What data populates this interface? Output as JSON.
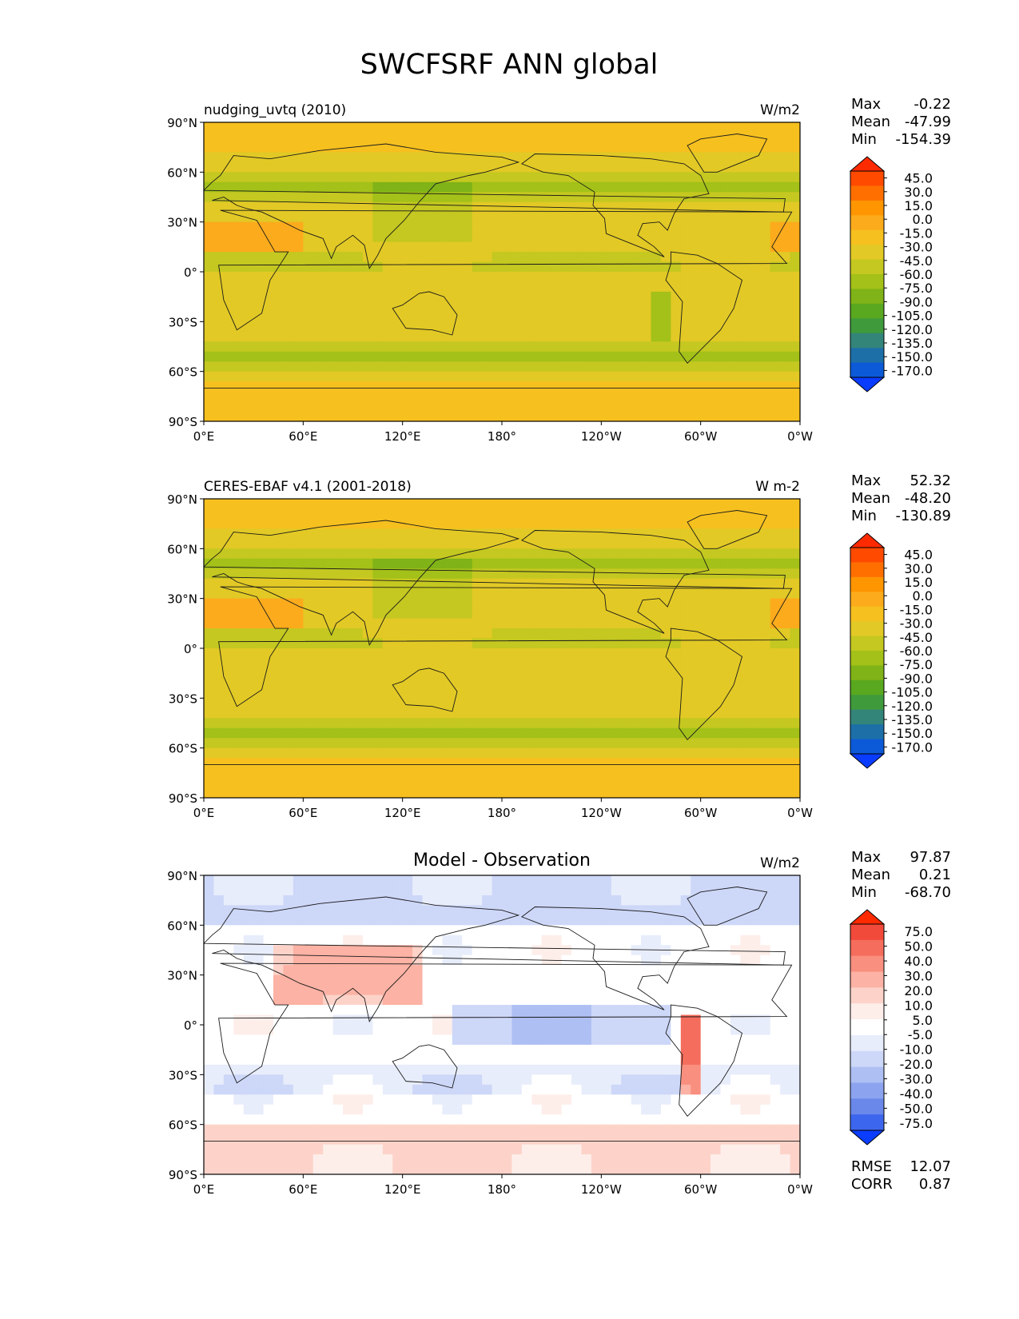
{
  "figure": {
    "title": "SWCFSRF ANN global"
  },
  "axes": {
    "lat_labels": [
      "90°N",
      "60°N",
      "30°N",
      "0°",
      "30°S",
      "60°S",
      "90°S"
    ],
    "lon_labels": [
      "0°E",
      "60°E",
      "120°E",
      "180°",
      "120°W",
      "60°W",
      "0°W"
    ]
  },
  "panels": [
    {
      "left_title": "nudging_uvtq (2010)",
      "center_title": "",
      "units": "W/m2",
      "stats": [
        {
          "label": "Max",
          "value": "-0.22"
        },
        {
          "label": "Mean",
          "value": "-47.99"
        },
        {
          "label": "Min",
          "value": "-154.39"
        }
      ],
      "colorbar": {
        "labels": [
          "45.0",
          "30.0",
          "15.0",
          "0.0",
          "-15.0",
          "-30.0",
          "-45.0",
          "-60.0",
          "-75.0",
          "-90.0",
          "-105.0",
          "-120.0",
          "-135.0",
          "-150.0",
          "-170.0"
        ],
        "colors": [
          "#ff2a00",
          "#ff4a00",
          "#ff6f00",
          "#ff9500",
          "#fcab1c",
          "#f6c01f",
          "#e2c925",
          "#c4c820",
          "#a3c118",
          "#7fb317",
          "#59a820",
          "#3f9a3c",
          "#33857a",
          "#1d6fa8",
          "#0c5ad8",
          "#0a3cff"
        ]
      },
      "field": "model"
    },
    {
      "left_title": "CERES-EBAF v4.1 (2001-2018)",
      "center_title": "",
      "units": "W m-2",
      "stats": [
        {
          "label": "Max",
          "value": "52.32"
        },
        {
          "label": "Mean",
          "value": "-48.20"
        },
        {
          "label": "Min",
          "value": "-130.89"
        }
      ],
      "colorbar": {
        "labels": [
          "45.0",
          "30.0",
          "15.0",
          "0.0",
          "-15.0",
          "-30.0",
          "-45.0",
          "-60.0",
          "-75.0",
          "-90.0",
          "-105.0",
          "-120.0",
          "-135.0",
          "-150.0",
          "-170.0"
        ],
        "colors": [
          "#ff2a00",
          "#ff4a00",
          "#ff6f00",
          "#ff9500",
          "#fcab1c",
          "#f6c01f",
          "#e2c925",
          "#c4c820",
          "#a3c118",
          "#7fb317",
          "#59a820",
          "#3f9a3c",
          "#33857a",
          "#1d6fa8",
          "#0c5ad8",
          "#0a3cff"
        ]
      },
      "field": "obs"
    },
    {
      "left_title": "",
      "center_title": "Model - Observation",
      "units": "W/m2",
      "stats": [
        {
          "label": "Max",
          "value": "97.87"
        },
        {
          "label": "Mean",
          "value": "0.21"
        },
        {
          "label": "Min",
          "value": "-68.70"
        }
      ],
      "colorbar": {
        "labels": [
          "75.0",
          "50.0",
          "40.0",
          "30.0",
          "20.0",
          "10.0",
          "5.0",
          "-5.0",
          "-10.0",
          "-20.0",
          "-30.0",
          "-40.0",
          "-50.0",
          "-75.0"
        ],
        "colors": [
          "#ff2a00",
          "#f24a3a",
          "#f56d5c",
          "#f98f7f",
          "#fcb2a4",
          "#fdd3c9",
          "#fdeeea",
          "#ffffff",
          "#e8edfb",
          "#cdd7f8",
          "#aebff4",
          "#8ca4ef",
          "#6a88ea",
          "#3d66ee",
          "#0b3dff"
        ]
      },
      "extra_stats": [
        {
          "label": "RMSE",
          "value": "12.07"
        },
        {
          "label": "CORR",
          "value": "0.87"
        }
      ],
      "field": "diff"
    }
  ]
}
